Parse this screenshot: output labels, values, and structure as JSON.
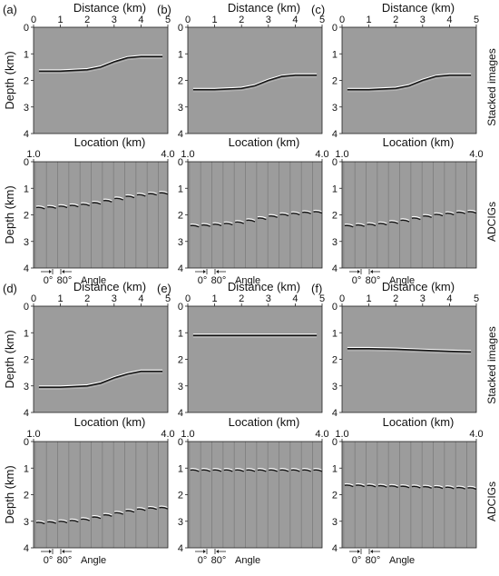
{
  "figure": {
    "row_labels": {
      "stacked": "Stacked images",
      "adcig": "ADCIGs"
    },
    "angle_legend": {
      "start": "0°",
      "end": "80°",
      "label": "Angle"
    }
  },
  "chart_data": [
    {
      "type": "seismic-image",
      "panel": "(a)",
      "kind": "stacked",
      "xlabel": "Distance (km)",
      "ylabel": "Depth (km)",
      "xticks": [
        "0",
        "1",
        "2",
        "3",
        "4",
        "5"
      ],
      "yticks": [
        "0",
        "1",
        "2",
        "3",
        "4"
      ],
      "xlim": [
        0,
        5
      ],
      "ylim": [
        0,
        4
      ],
      "reflector": {
        "x": [
          0.2,
          1.0,
          2.0,
          2.5,
          3.0,
          3.5,
          4.0,
          4.8
        ],
        "depth": [
          1.65,
          1.65,
          1.6,
          1.5,
          1.3,
          1.15,
          1.1,
          1.1
        ]
      }
    },
    {
      "type": "seismic-image",
      "panel": "(b)",
      "kind": "stacked",
      "xlabel": "Distance (km)",
      "ylabel": "",
      "xticks": [
        "0",
        "1",
        "2",
        "3",
        "4",
        "5"
      ],
      "yticks": [
        "0",
        "1",
        "2",
        "3",
        "4"
      ],
      "xlim": [
        0,
        5
      ],
      "ylim": [
        0,
        4
      ],
      "reflector": {
        "x": [
          0.2,
          1.0,
          2.0,
          2.5,
          3.0,
          3.5,
          4.0,
          4.8
        ],
        "depth": [
          2.35,
          2.35,
          2.3,
          2.2,
          2.0,
          1.85,
          1.8,
          1.8
        ]
      }
    },
    {
      "type": "seismic-image",
      "panel": "(c)",
      "kind": "stacked",
      "xlabel": "Distance (km)",
      "ylabel": "",
      "xticks": [
        "0",
        "1",
        "2",
        "3",
        "4",
        "5"
      ],
      "yticks": [
        "0",
        "1",
        "2",
        "3",
        "4"
      ],
      "xlim": [
        0,
        5
      ],
      "ylim": [
        0,
        4
      ],
      "reflector": {
        "x": [
          0.2,
          1.0,
          2.0,
          2.5,
          3.0,
          3.5,
          4.0,
          4.8
        ],
        "depth": [
          2.35,
          2.35,
          2.3,
          2.2,
          2.0,
          1.85,
          1.8,
          1.8
        ]
      }
    },
    {
      "type": "seismic-gathers",
      "panel": "",
      "kind": "adcig",
      "xlabel": "Location (km)",
      "ylabel": "Depth (km)",
      "xticks": [
        "1.0",
        "4.0"
      ],
      "yticks": [
        "0",
        "1",
        "2",
        "3",
        "4"
      ],
      "xlim": [
        1.0,
        4.0
      ],
      "ylim": [
        0,
        4
      ],
      "gather_depths": [
        1.7,
        1.68,
        1.65,
        1.62,
        1.58,
        1.52,
        1.44,
        1.36,
        1.28,
        1.22,
        1.18,
        1.15
      ]
    },
    {
      "type": "seismic-gathers",
      "panel": "",
      "kind": "adcig",
      "xlabel": "Location (km)",
      "ylabel": "",
      "xticks": [
        "1.0",
        "4.0"
      ],
      "yticks": [
        "0",
        "1",
        "2",
        "3",
        "4"
      ],
      "xlim": [
        1.0,
        4.0
      ],
      "ylim": [
        0,
        4
      ],
      "gather_depths": [
        2.38,
        2.36,
        2.33,
        2.3,
        2.25,
        2.18,
        2.1,
        2.02,
        1.96,
        1.92,
        1.88,
        1.86
      ]
    },
    {
      "type": "seismic-gathers",
      "panel": "",
      "kind": "adcig",
      "xlabel": "Location (km)",
      "ylabel": "",
      "xticks": [
        "1.0",
        "4.0"
      ],
      "yticks": [
        "0",
        "1",
        "2",
        "3",
        "4"
      ],
      "xlim": [
        1.0,
        4.0
      ],
      "ylim": [
        0,
        4
      ],
      "gather_depths": [
        2.38,
        2.36,
        2.33,
        2.3,
        2.25,
        2.18,
        2.1,
        2.02,
        1.96,
        1.92,
        1.88,
        1.86
      ]
    },
    {
      "type": "seismic-image",
      "panel": "(d)",
      "kind": "stacked",
      "xlabel": "Distance (km)",
      "ylabel": "Depth (km)",
      "xticks": [
        "0",
        "1",
        "2",
        "3",
        "4",
        "5"
      ],
      "yticks": [
        "0",
        "1",
        "2",
        "3",
        "4"
      ],
      "xlim": [
        0,
        5
      ],
      "ylim": [
        0,
        4
      ],
      "reflector": {
        "x": [
          0.2,
          1.0,
          2.0,
          2.5,
          3.0,
          3.5,
          4.0,
          4.8
        ],
        "depth": [
          3.05,
          3.05,
          3.0,
          2.9,
          2.7,
          2.55,
          2.45,
          2.45
        ]
      }
    },
    {
      "type": "seismic-image",
      "panel": "(e)",
      "kind": "stacked",
      "xlabel": "Distance (km)",
      "ylabel": "",
      "xticks": [
        "0",
        "1",
        "2",
        "3",
        "4",
        "5"
      ],
      "yticks": [
        "0",
        "1",
        "2",
        "3",
        "4"
      ],
      "xlim": [
        0,
        5
      ],
      "ylim": [
        0,
        4
      ],
      "reflector": {
        "x": [
          0.2,
          4.8
        ],
        "depth": [
          1.1,
          1.1
        ]
      }
    },
    {
      "type": "seismic-image",
      "panel": "(f)",
      "kind": "stacked",
      "xlabel": "Distance (km)",
      "ylabel": "",
      "xticks": [
        "0",
        "1",
        "2",
        "3",
        "4",
        "5"
      ],
      "yticks": [
        "0",
        "1",
        "2",
        "3",
        "4"
      ],
      "xlim": [
        0,
        5
      ],
      "ylim": [
        0,
        4
      ],
      "reflector": {
        "x": [
          0.2,
          1.0,
          2.0,
          3.0,
          4.0,
          4.8
        ],
        "depth": [
          1.6,
          1.6,
          1.62,
          1.66,
          1.7,
          1.72
        ]
      }
    },
    {
      "type": "seismic-gathers",
      "panel": "",
      "kind": "adcig",
      "xlabel": "Location (km)",
      "ylabel": "Depth (km)",
      "xticks": [
        "1.0",
        "4.0"
      ],
      "yticks": [
        "0",
        "1",
        "2",
        "3",
        "4"
      ],
      "xlim": [
        1.0,
        4.0
      ],
      "ylim": [
        0,
        4
      ],
      "gather_depths": [
        3.02,
        3.0,
        2.98,
        2.95,
        2.9,
        2.82,
        2.74,
        2.66,
        2.58,
        2.52,
        2.48,
        2.46
      ]
    },
    {
      "type": "seismic-gathers",
      "panel": "",
      "kind": "adcig",
      "xlabel": "Location (km)",
      "ylabel": "",
      "xticks": [
        "1.0",
        "4.0"
      ],
      "yticks": [
        "0",
        "1",
        "2",
        "3",
        "4"
      ],
      "xlim": [
        1.0,
        4.0
      ],
      "ylim": [
        0,
        4
      ],
      "gather_depths": [
        1.05,
        1.05,
        1.05,
        1.05,
        1.05,
        1.05,
        1.05,
        1.05,
        1.05,
        1.05,
        1.05,
        1.05
      ]
    },
    {
      "type": "seismic-gathers",
      "panel": "",
      "kind": "adcig",
      "xlabel": "Location (km)",
      "ylabel": "",
      "xticks": [
        "1.0",
        "4.0"
      ],
      "yticks": [
        "0",
        "1",
        "2",
        "3",
        "4"
      ],
      "xlim": [
        1.0,
        4.0
      ],
      "ylim": [
        0,
        4
      ],
      "gather_depths": [
        1.62,
        1.62,
        1.63,
        1.64,
        1.65,
        1.66,
        1.67,
        1.68,
        1.69,
        1.7,
        1.71,
        1.72
      ]
    }
  ]
}
